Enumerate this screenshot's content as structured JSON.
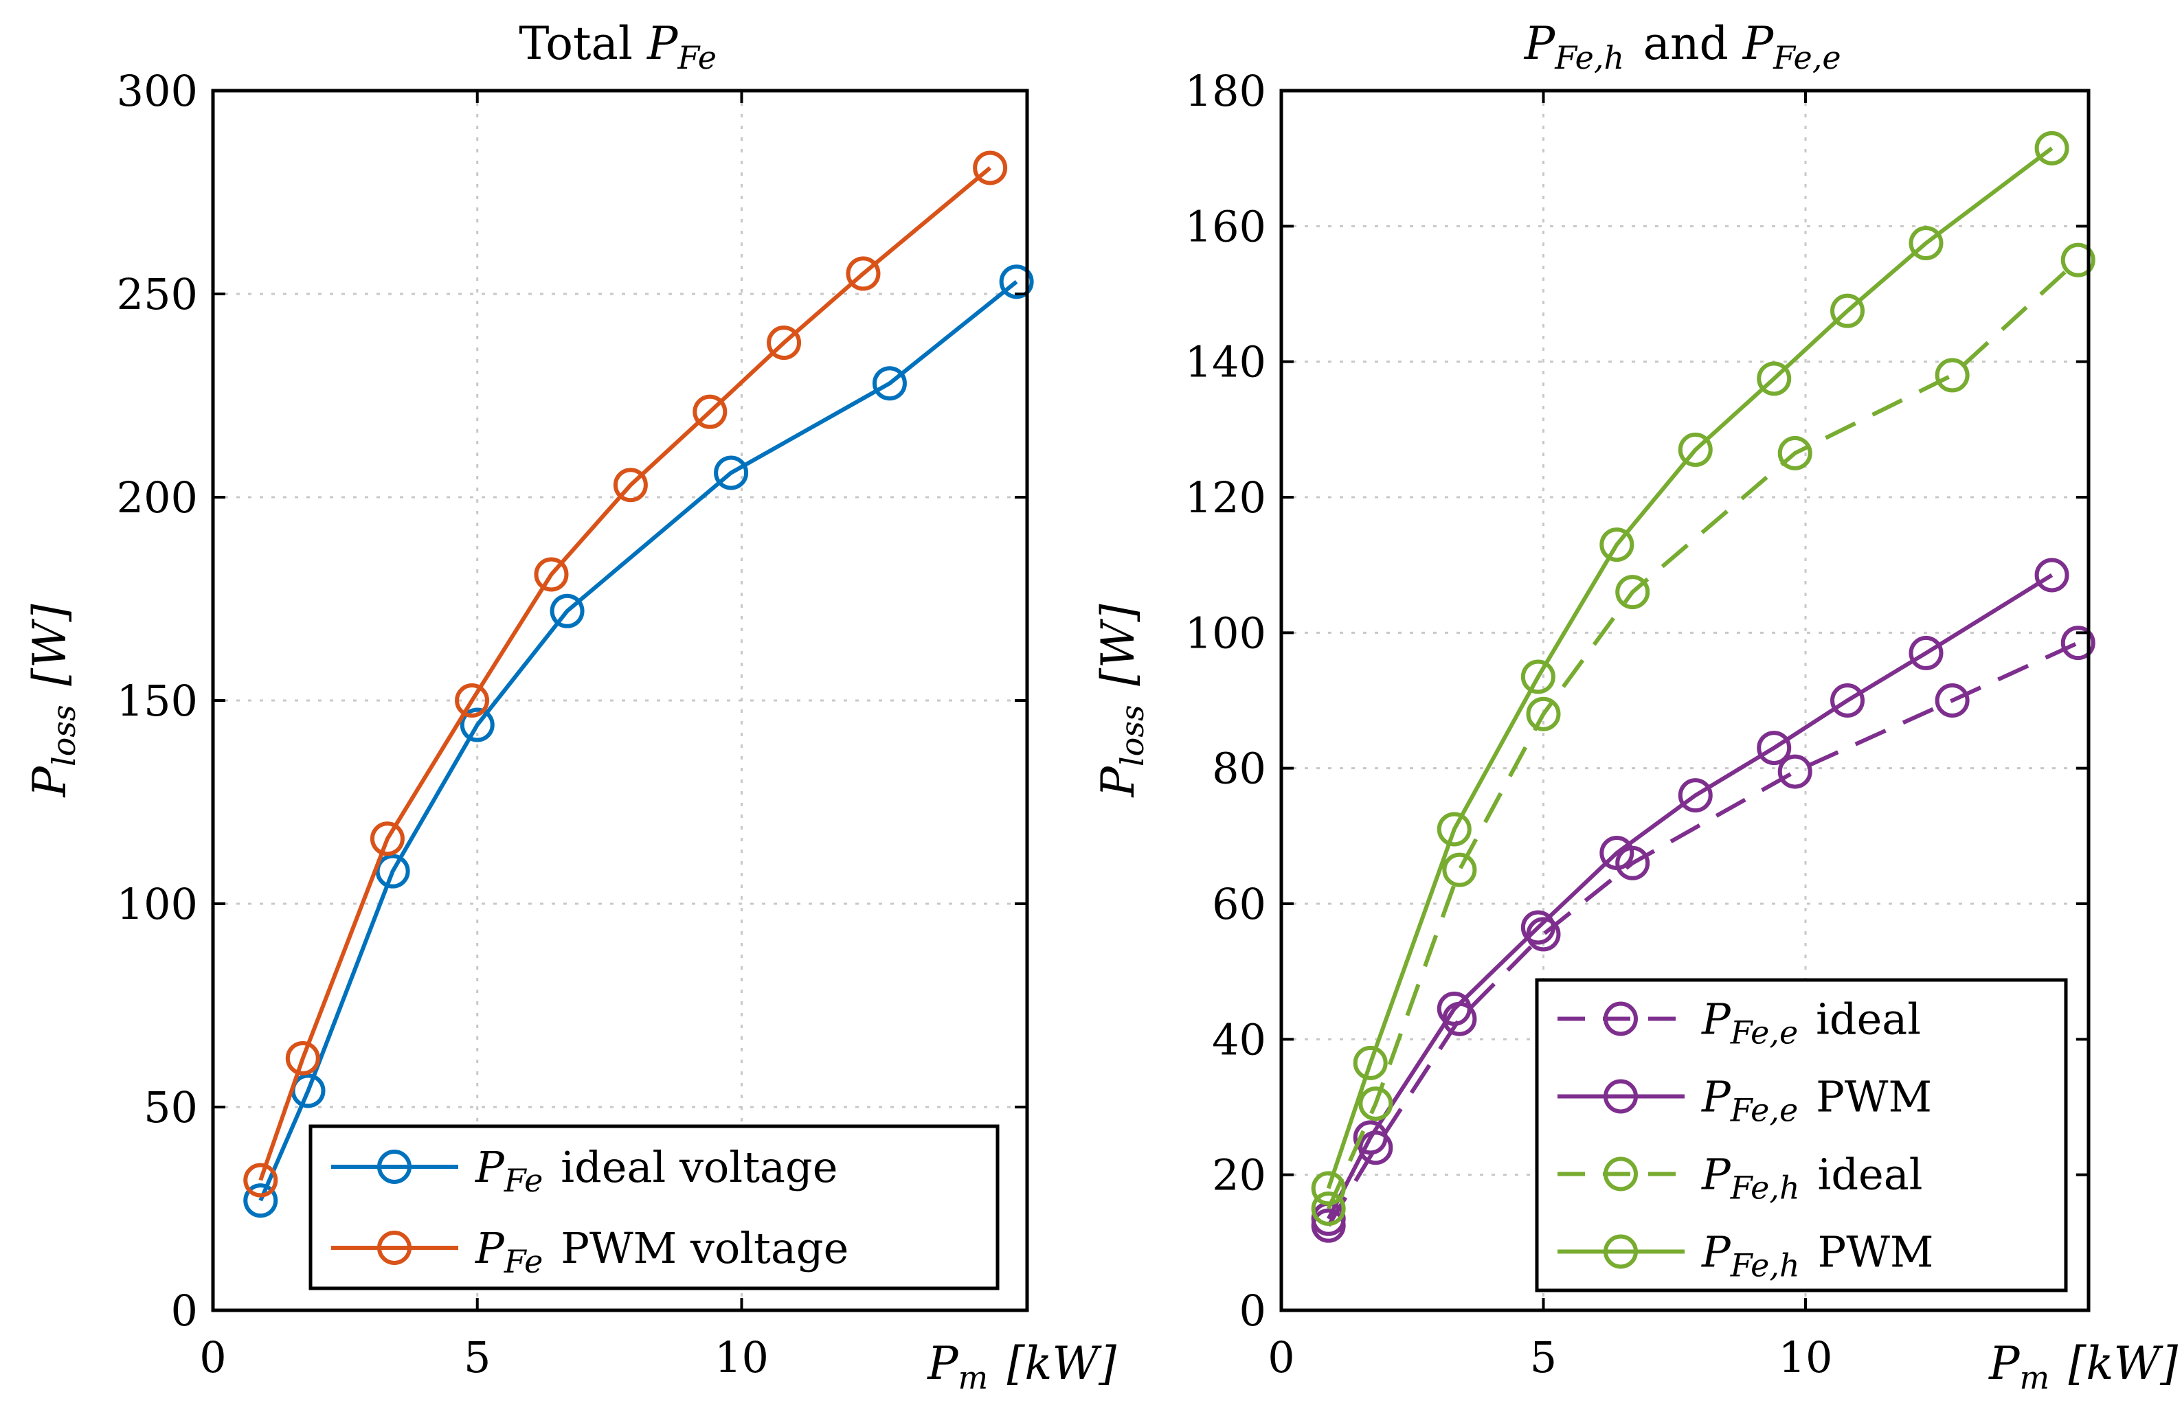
{
  "chart_data": [
    {
      "type": "line",
      "title": "Total P_Fe",
      "title_text": "Total ",
      "title_math": {
        "base": "P",
        "sub": "Fe"
      },
      "xlabel": {
        "base": "P",
        "sub": "m",
        "unit": "[kW]"
      },
      "ylabel": {
        "base": "P",
        "sub": "loss",
        "unit": "[W]"
      },
      "xlim": [
        0,
        15.4
      ],
      "ylim": [
        0,
        300
      ],
      "xticks": [
        0,
        5,
        10
      ],
      "yticks": [
        0,
        50,
        100,
        150,
        200,
        250,
        300
      ],
      "grid": true,
      "legend_position": "bottom-right",
      "series": [
        {
          "name": "P_Fe ideal voltage",
          "legend_math": {
            "base": "P",
            "sub": "Fe"
          },
          "legend_text": "ideal voltage",
          "color": "#0072BD",
          "dash": false,
          "x": [
            0.9,
            1.8,
            3.4,
            5.0,
            6.7,
            9.8,
            12.8,
            15.2
          ],
          "y": [
            27,
            54,
            108,
            144,
            172,
            206,
            228,
            253
          ]
        },
        {
          "name": "P_Fe PWM voltage",
          "legend_math": {
            "base": "P",
            "sub": "Fe"
          },
          "legend_text": "PWM voltage",
          "color": "#D95319",
          "dash": false,
          "x": [
            0.9,
            1.7,
            3.3,
            4.9,
            6.4,
            7.9,
            9.4,
            10.8,
            12.3,
            14.7
          ],
          "y": [
            32,
            62,
            116,
            150,
            181,
            203,
            221,
            238,
            255,
            281
          ]
        }
      ]
    },
    {
      "type": "line",
      "title": "P_Fe,h and P_Fe,e",
      "title_parts": {
        "a": {
          "base": "P",
          "sub": "Fe,h"
        },
        "mid": " and ",
        "b": {
          "base": "P",
          "sub": "Fe,e"
        }
      },
      "xlabel": {
        "base": "P",
        "sub": "m",
        "unit": "[kW]"
      },
      "ylabel": {
        "base": "P",
        "sub": "loss",
        "unit": "[W]"
      },
      "xlim": [
        0,
        15.4
      ],
      "ylim": [
        0,
        180
      ],
      "xticks": [
        0,
        5,
        10
      ],
      "yticks": [
        0,
        20,
        40,
        60,
        80,
        100,
        120,
        140,
        160,
        180
      ],
      "grid": true,
      "legend_position": "bottom-right",
      "series": [
        {
          "name": "P_Fe,e ideal",
          "legend_math": {
            "base": "P",
            "sub": "Fe,e"
          },
          "legend_text": "ideal",
          "color": "#7E2F8E",
          "dash": true,
          "x": [
            0.9,
            1.8,
            3.4,
            5.0,
            6.7,
            9.8,
            12.8,
            15.2
          ],
          "y": [
            12.5,
            24,
            43,
            55.5,
            66,
            79.5,
            90,
            98.5
          ]
        },
        {
          "name": "P_Fe,e PWM",
          "legend_math": {
            "base": "P",
            "sub": "Fe,e"
          },
          "legend_text": "PWM",
          "color": "#7E2F8E",
          "dash": false,
          "x": [
            0.9,
            1.7,
            3.3,
            4.9,
            6.4,
            7.9,
            9.4,
            10.8,
            12.3,
            14.7
          ],
          "y": [
            13.5,
            25.5,
            44.5,
            56.5,
            67.5,
            76,
            83,
            90,
            97,
            108.5
          ]
        },
        {
          "name": "P_Fe,h ideal",
          "legend_math": {
            "base": "P",
            "sub": "Fe,h"
          },
          "legend_text": "ideal",
          "color": "#77AC30",
          "dash": true,
          "x": [
            0.9,
            1.8,
            3.4,
            5.0,
            6.7,
            9.8,
            12.8,
            15.2
          ],
          "y": [
            15,
            30.5,
            65,
            88,
            106,
            126.5,
            138,
            155
          ]
        },
        {
          "name": "P_Fe,h PWM",
          "legend_math": {
            "base": "P",
            "sub": "Fe,h"
          },
          "legend_text": "PWM",
          "color": "#77AC30",
          "dash": false,
          "x": [
            0.9,
            1.7,
            3.3,
            4.9,
            6.4,
            7.9,
            9.4,
            10.8,
            12.3,
            14.7
          ],
          "y": [
            18,
            36.5,
            71,
            93.5,
            113,
            127,
            137.5,
            147.5,
            157.5,
            171.5
          ]
        }
      ]
    }
  ]
}
